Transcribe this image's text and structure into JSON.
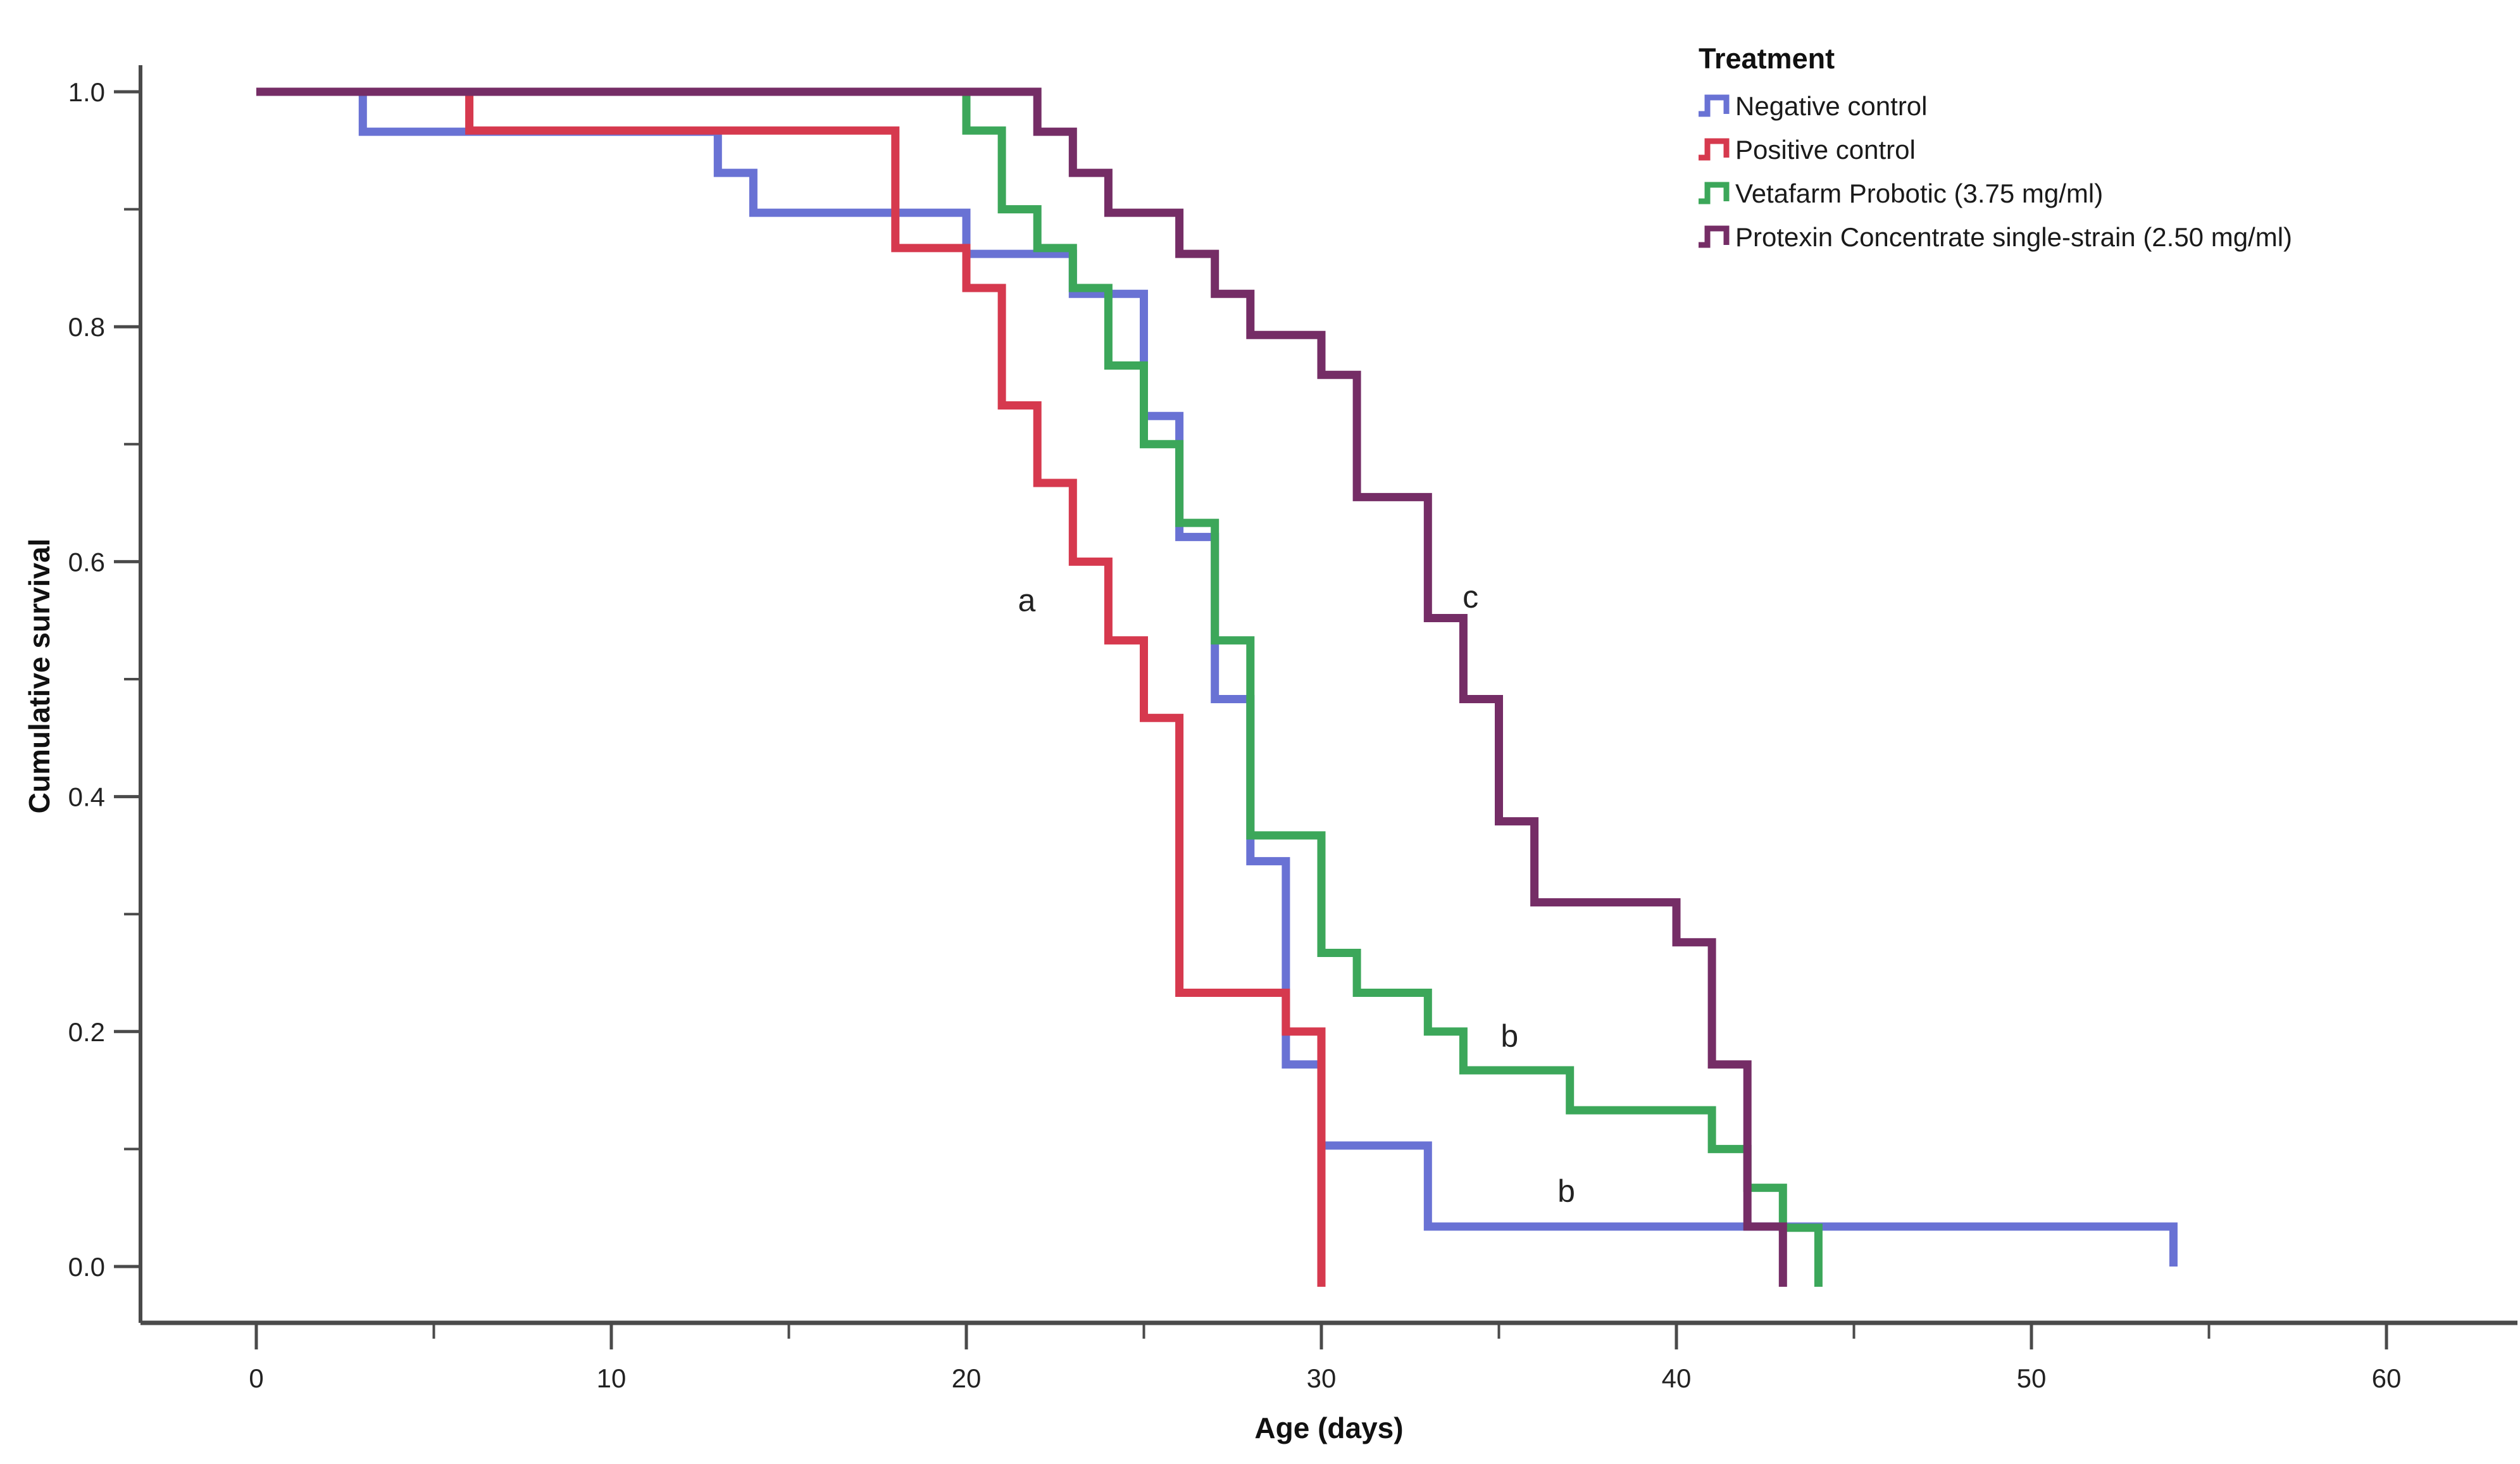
{
  "axes": {
    "x_label": "Age (days)",
    "y_label": "Cumulative survival",
    "x_tick_labels": [
      "0",
      "10",
      "20",
      "30",
      "40",
      "50",
      "60"
    ],
    "x_tick_values": [
      0,
      10,
      20,
      30,
      40,
      50,
      60
    ],
    "x_minor_tick_values": [
      5,
      15,
      25,
      35,
      45,
      55
    ],
    "y_tick_labels": [
      "0.0",
      "0.2",
      "0.4",
      "0.6",
      "0.8",
      "1.0"
    ],
    "y_tick_values": [
      0.0,
      0.2,
      0.4,
      0.6,
      0.8,
      1.0
    ],
    "y_minor_tick_values": [
      0.1,
      0.3,
      0.5,
      0.7,
      0.9
    ],
    "x_range": [
      0,
      60
    ],
    "y_range": [
      0,
      1
    ],
    "grid": "off"
  },
  "legend": {
    "title": "Treatment",
    "position": "top-right"
  },
  "chart_data": {
    "type": "line",
    "subtype": "kaplan-meier-step",
    "title": "",
    "xlabel": "Age (days)",
    "ylabel": "Cumulative survival",
    "xlim": [
      0,
      60
    ],
    "ylim": [
      0,
      1
    ],
    "series": [
      {
        "name": "Negative control",
        "color": "#6972D4",
        "end_tick_below_axis": false,
        "points": [
          [
            0,
            1.0
          ],
          [
            3,
            0.966
          ],
          [
            13,
            0.931
          ],
          [
            14,
            0.897
          ],
          [
            20,
            0.862
          ],
          [
            23,
            0.828
          ],
          [
            25,
            0.724
          ],
          [
            26,
            0.621
          ],
          [
            27,
            0.483
          ],
          [
            28,
            0.345
          ],
          [
            29,
            0.172
          ],
          [
            30,
            0.103
          ],
          [
            33,
            0.034
          ],
          [
            54,
            0.0
          ]
        ]
      },
      {
        "name": "Positive control",
        "color": "#D6394E",
        "end_tick_below_axis": true,
        "points": [
          [
            0,
            1.0
          ],
          [
            6,
            0.967
          ],
          [
            18,
            0.867
          ],
          [
            20,
            0.833
          ],
          [
            21,
            0.733
          ],
          [
            22,
            0.667
          ],
          [
            23,
            0.6
          ],
          [
            24,
            0.533
          ],
          [
            25,
            0.467
          ],
          [
            26,
            0.233
          ],
          [
            29,
            0.2
          ],
          [
            30,
            0.0
          ]
        ]
      },
      {
        "name": "Vetafarm Probotic (3.75 mg/ml)",
        "color": "#3CA75A",
        "end_tick_below_axis": true,
        "points": [
          [
            0,
            1.0
          ],
          [
            20,
            0.967
          ],
          [
            21,
            0.9
          ],
          [
            22,
            0.867
          ],
          [
            23,
            0.833
          ],
          [
            24,
            0.767
          ],
          [
            25,
            0.7
          ],
          [
            26,
            0.633
          ],
          [
            27,
            0.533
          ],
          [
            28,
            0.367
          ],
          [
            30,
            0.267
          ],
          [
            31,
            0.233
          ],
          [
            33,
            0.2
          ],
          [
            34,
            0.167
          ],
          [
            37,
            0.133
          ],
          [
            41,
            0.1
          ],
          [
            42,
            0.067
          ],
          [
            43,
            0.033
          ],
          [
            44,
            0.0
          ]
        ]
      },
      {
        "name": "Protexin Concentrate single-strain (2.50 mg/ml)",
        "color": "#752D66",
        "end_tick_below_axis": true,
        "points": [
          [
            0,
            1.0
          ],
          [
            22,
            0.966
          ],
          [
            23,
            0.931
          ],
          [
            24,
            0.897
          ],
          [
            26,
            0.862
          ],
          [
            27,
            0.828
          ],
          [
            28,
            0.793
          ],
          [
            30,
            0.759
          ],
          [
            31,
            0.655
          ],
          [
            33,
            0.552
          ],
          [
            34,
            0.483
          ],
          [
            35,
            0.379
          ],
          [
            36,
            0.31
          ],
          [
            40,
            0.276
          ],
          [
            41,
            0.172
          ],
          [
            42,
            0.034
          ],
          [
            43,
            0.0
          ]
        ]
      }
    ],
    "annotations": [
      {
        "text": "a",
        "x": 21.7,
        "y": 0.567
      },
      {
        "text": "c",
        "x": 34.2,
        "y": 0.57
      },
      {
        "text": "b",
        "x": 35.3,
        "y": 0.196
      },
      {
        "text": "b",
        "x": 36.9,
        "y": 0.064
      }
    ]
  }
}
